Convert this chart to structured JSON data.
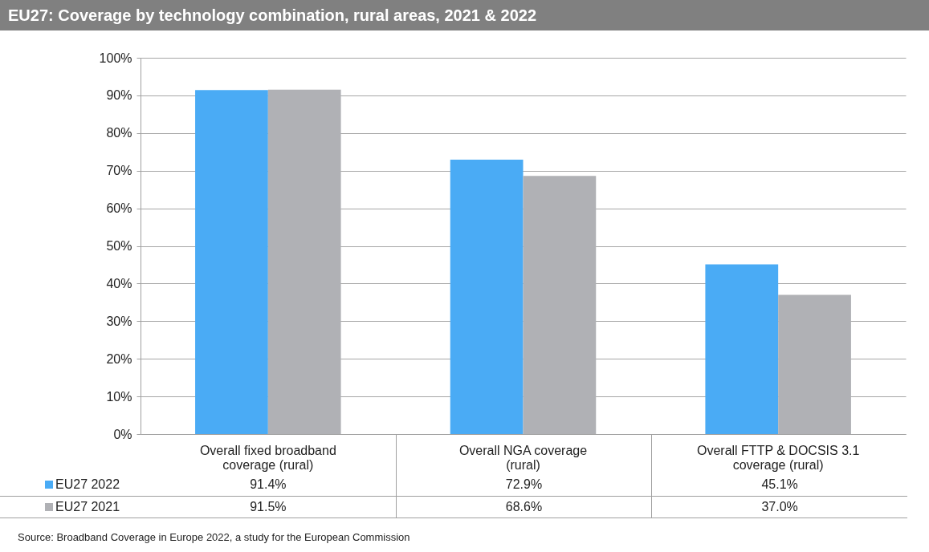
{
  "chart_data": {
    "type": "bar",
    "title": "EU27: Coverage by technology combination, rural areas, 2021 & 2022",
    "categories": [
      "Overall fixed broadband coverage (rural)",
      "Overall NGA coverage (rural)",
      "Overall FTTP & DOCSIS 3.1 coverage (rural)"
    ],
    "series": [
      {
        "name": "EU27 2022",
        "color": "#4aabf5",
        "values": [
          91.4,
          72.9,
          45.1
        ],
        "value_labels": [
          "91.4%",
          "72.9%",
          "45.1%"
        ]
      },
      {
        "name": "EU27 2021",
        "color": "#b0b1b5",
        "values": [
          91.5,
          68.6,
          37.0
        ],
        "value_labels": [
          "91.5%",
          "68.6%",
          "37.0%"
        ]
      }
    ],
    "ylim": [
      0,
      100
    ],
    "yticks": [
      {
        "value": 0,
        "label": "0%"
      },
      {
        "value": 10,
        "label": "10%"
      },
      {
        "value": 20,
        "label": "20%"
      },
      {
        "value": 30,
        "label": "30%"
      },
      {
        "value": 40,
        "label": "40%"
      },
      {
        "value": 50,
        "label": "50%"
      },
      {
        "value": 60,
        "label": "60%"
      },
      {
        "value": 70,
        "label": "70%"
      },
      {
        "value": 80,
        "label": "80%"
      },
      {
        "value": 90,
        "label": "90%"
      },
      {
        "value": 100,
        "label": "100%"
      }
    ],
    "grid": "y",
    "legend": "bottom left",
    "annotations": [
      "Source: Broadband Coverage in Europe 2022, a study for the European Commission"
    ]
  }
}
